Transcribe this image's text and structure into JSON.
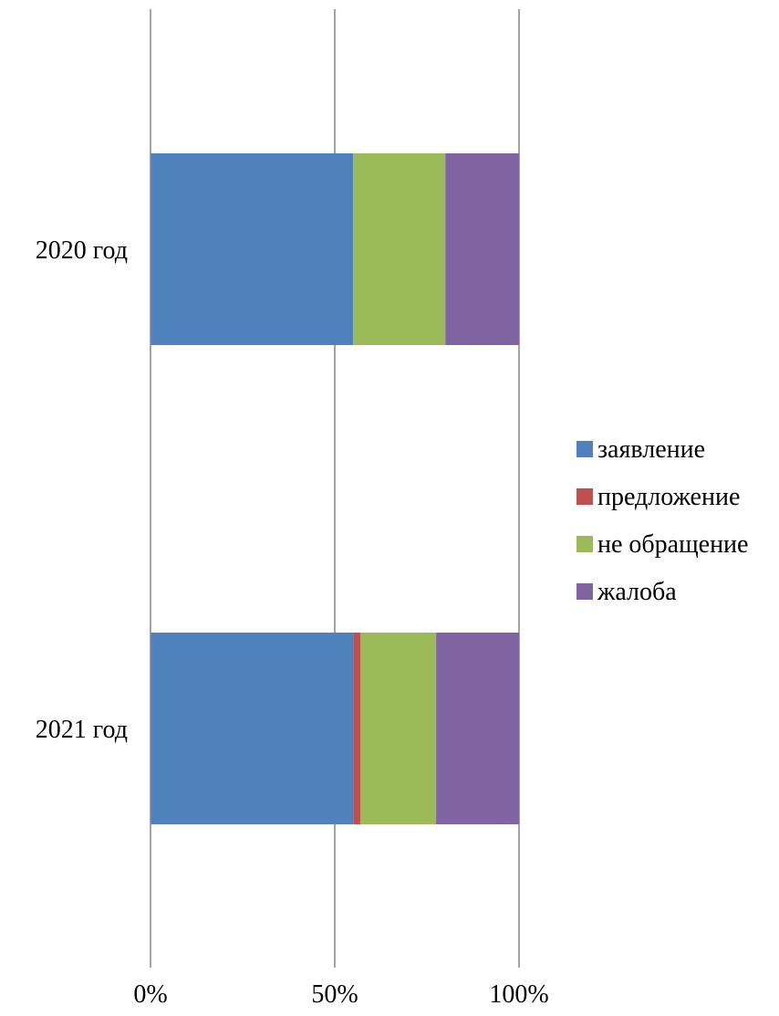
{
  "chart_data": {
    "type": "bar",
    "orientation": "horizontal",
    "stacked": "percent",
    "categories": [
      "2020 год",
      "2021 год"
    ],
    "series": [
      {
        "name": "заявление",
        "color": "#4F81BD",
        "values": [
          55,
          55
        ]
      },
      {
        "name": "предложение",
        "color": "#C0504D",
        "values": [
          0,
          2
        ]
      },
      {
        "name": "не обращение",
        "color": "#9BBB59",
        "values": [
          25,
          20.5
        ]
      },
      {
        "name": "жалоба",
        "color": "#8064A2",
        "values": [
          20,
          22.5
        ]
      }
    ],
    "xlim": [
      0,
      100
    ],
    "x_ticks": [
      "0%",
      "50%",
      "100%"
    ],
    "grid": "vertical",
    "legend": "right",
    "title": "",
    "xlabel": "",
    "ylabel": ""
  }
}
